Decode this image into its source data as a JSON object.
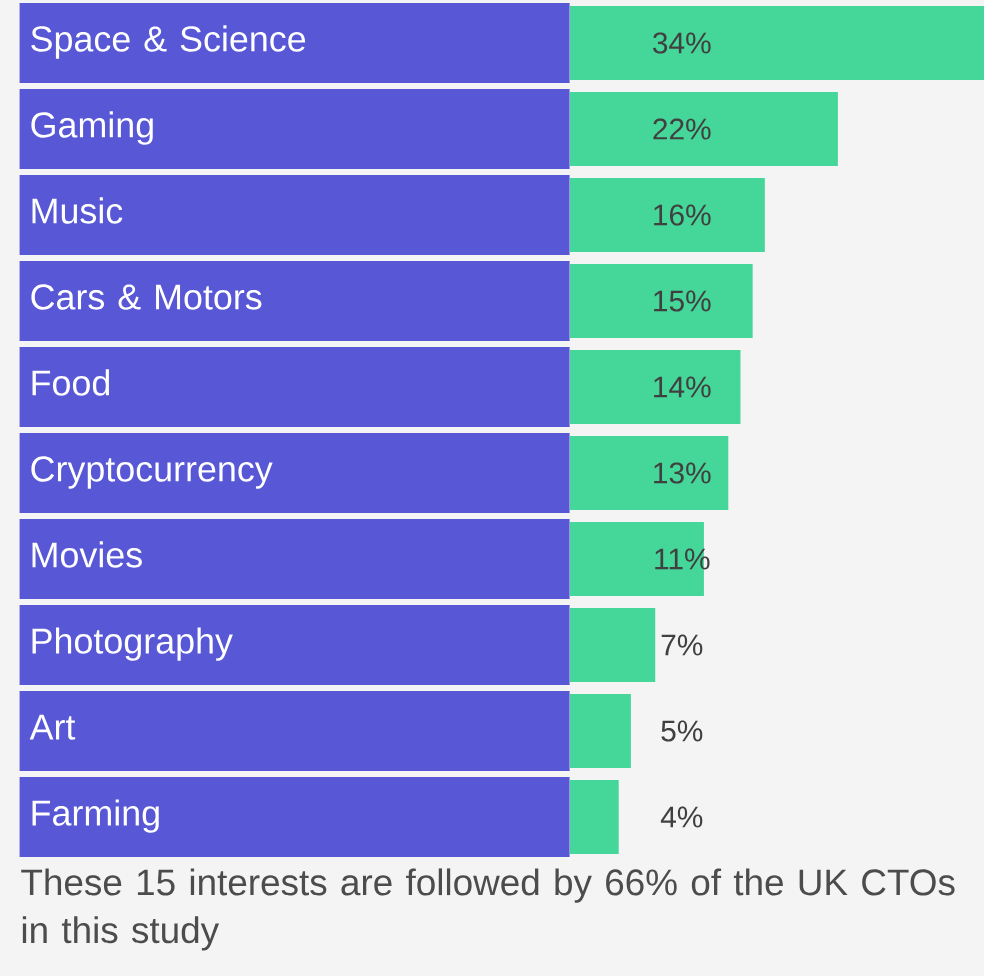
{
  "chart_data": {
    "type": "bar",
    "orientation": "horizontal",
    "categories": [
      "Space & Science",
      "Gaming",
      "Music",
      "Cars & Motors",
      "Food",
      "Cryptocurrency",
      "Movies",
      "Photography",
      "Art",
      "Farming"
    ],
    "values": [
      34,
      22,
      16,
      15,
      14,
      13,
      11,
      7,
      5,
      4
    ],
    "value_labels": [
      "34%",
      "22%",
      "16%",
      "15%",
      "14%",
      "13%",
      "11%",
      "7%",
      "5%",
      "4%"
    ],
    "color": "#45d699",
    "annotations": [
      "These 15 interests are followed by 66% of the UK CTOs in this study"
    ]
  }
}
